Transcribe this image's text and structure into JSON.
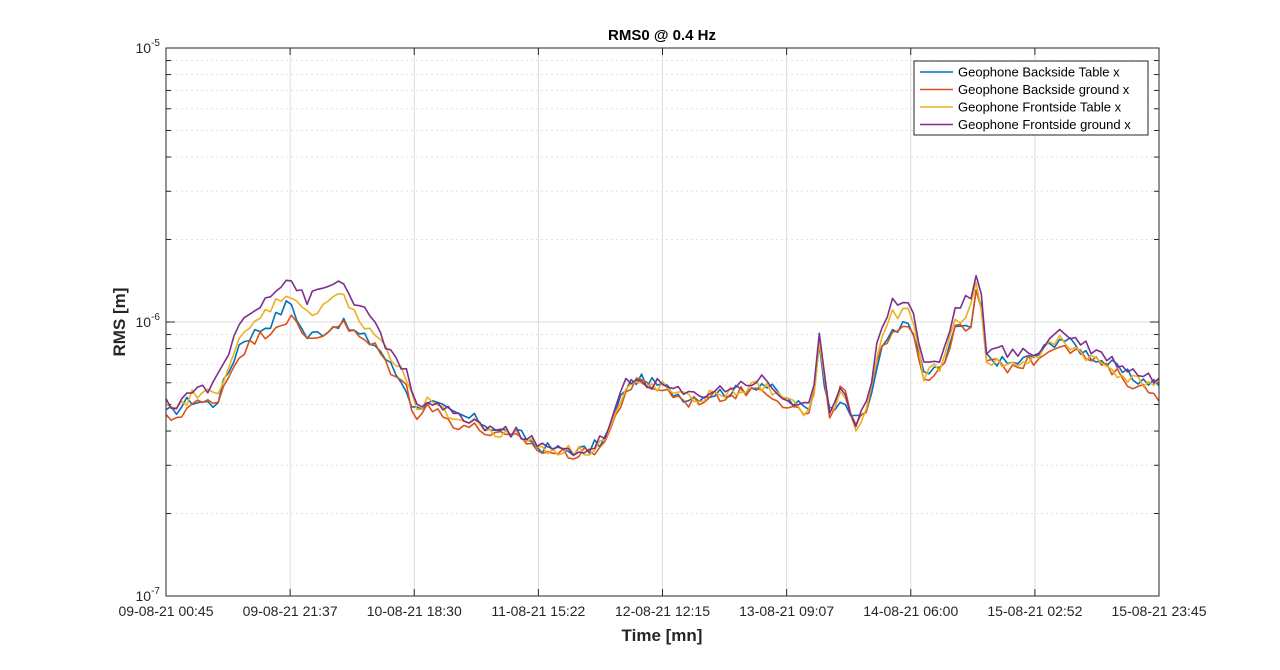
{
  "chart_data": {
    "type": "line",
    "title": "RMS0 @ 0.4 Hz",
    "xlabel": "Time [mn]",
    "ylabel": "RMS [m]",
    "yscale": "log",
    "ylim": [
      1e-07,
      1e-05
    ],
    "y_ticks": [
      {
        "value": 1e-07,
        "base": "10",
        "exp": "-7"
      },
      {
        "value": 1e-06,
        "base": "10",
        "exp": "-6"
      },
      {
        "value": 1e-05,
        "base": "10",
        "exp": "-5"
      }
    ],
    "x_tick_labels": [
      "09-08-21 00:45",
      "09-08-21 21:37",
      "10-08-21 18:30",
      "11-08-21 15:22",
      "12-08-21 12:15",
      "13-08-21 09:07",
      "14-08-21 06:00",
      "15-08-21 02:52",
      "15-08-21 23:45"
    ],
    "xlim": [
      0,
      8
    ],
    "grid": true,
    "minor_grid": true,
    "legend_position": "top-right",
    "x_unit_note": "x values are in tick intervals of 20h52m starting at 09-08-21 00:45",
    "series": [
      {
        "name": "Geophone Backside Table x",
        "color": "#0072BD",
        "anchors": [
          [
            0,
            4.6e-07
          ],
          [
            0.08,
            4.8e-07
          ],
          [
            0.2,
            5.2e-07
          ],
          [
            0.4,
            5e-07
          ],
          [
            0.6,
            8.5e-07
          ],
          [
            0.85,
            1e-06
          ],
          [
            1.0,
            1.2e-06
          ],
          [
            1.12,
            8.8e-07
          ],
          [
            1.25,
            9.2e-07
          ],
          [
            1.4,
            1e-06
          ],
          [
            1.55,
            9e-07
          ],
          [
            1.7,
            8.2e-07
          ],
          [
            1.85,
            6.5e-07
          ],
          [
            1.95,
            5.6e-07
          ],
          [
            2.0,
            4.7e-07
          ],
          [
            2.1,
            5.2e-07
          ],
          [
            2.3,
            4.6e-07
          ],
          [
            2.5,
            4.4e-07
          ],
          [
            2.7,
            4e-07
          ],
          [
            2.9,
            3.8e-07
          ],
          [
            3.0,
            3.5e-07
          ],
          [
            3.2,
            3.4e-07
          ],
          [
            3.4,
            3.4e-07
          ],
          [
            3.55,
            3.8e-07
          ],
          [
            3.7,
            5.8e-07
          ],
          [
            3.8,
            6.2e-07
          ],
          [
            4.0,
            5.8e-07
          ],
          [
            4.2,
            5.3e-07
          ],
          [
            4.4,
            5.5e-07
          ],
          [
            4.6,
            5.6e-07
          ],
          [
            4.8,
            6e-07
          ],
          [
            5.0,
            5.2e-07
          ],
          [
            5.2,
            4.7e-07
          ],
          [
            5.27,
            9e-07
          ],
          [
            5.33,
            4.6e-07
          ],
          [
            5.45,
            5.5e-07
          ],
          [
            5.55,
            4.3e-07
          ],
          [
            5.65,
            4.8e-07
          ],
          [
            5.75,
            7.5e-07
          ],
          [
            5.85,
            9.5e-07
          ],
          [
            6.0,
            9.8e-07
          ],
          [
            6.1,
            6.5e-07
          ],
          [
            6.25,
            6.6e-07
          ],
          [
            6.35,
            9.5e-07
          ],
          [
            6.48,
            9.3e-07
          ],
          [
            6.55,
            1.45e-06
          ],
          [
            6.6,
            7.5e-07
          ],
          [
            6.8,
            7e-07
          ],
          [
            7.0,
            7.5e-07
          ],
          [
            7.2,
            8.8e-07
          ],
          [
            7.4,
            7.8e-07
          ],
          [
            7.6,
            7e-07
          ],
          [
            7.8,
            6.2e-07
          ],
          [
            8.0,
            6e-07
          ]
        ]
      },
      {
        "name": "Geophone Backside ground x",
        "color": "#D95319",
        "anchors": [
          [
            0,
            4.4e-07
          ],
          [
            0.08,
            4.5e-07
          ],
          [
            0.2,
            5e-07
          ],
          [
            0.4,
            5.1e-07
          ],
          [
            0.6,
            7.8e-07
          ],
          [
            0.85,
            9.5e-07
          ],
          [
            1.0,
            1.05e-06
          ],
          [
            1.12,
            8.6e-07
          ],
          [
            1.25,
            9e-07
          ],
          [
            1.4,
            1e-06
          ],
          [
            1.55,
            8.8e-07
          ],
          [
            1.7,
            8e-07
          ],
          [
            1.85,
            6.3e-07
          ],
          [
            1.95,
            5.7e-07
          ],
          [
            2.0,
            4.5e-07
          ],
          [
            2.1,
            5e-07
          ],
          [
            2.3,
            4.3e-07
          ],
          [
            2.5,
            4.1e-07
          ],
          [
            2.7,
            3.8e-07
          ],
          [
            2.9,
            3.7e-07
          ],
          [
            3.0,
            3.4e-07
          ],
          [
            3.2,
            3.3e-07
          ],
          [
            3.4,
            3.3e-07
          ],
          [
            3.55,
            3.7e-07
          ],
          [
            3.7,
            5.6e-07
          ],
          [
            3.8,
            6e-07
          ],
          [
            4.0,
            5.7e-07
          ],
          [
            4.2,
            5.1e-07
          ],
          [
            4.4,
            5.3e-07
          ],
          [
            4.6,
            5.5e-07
          ],
          [
            4.8,
            5.8e-07
          ],
          [
            5.0,
            5e-07
          ],
          [
            5.2,
            4.5e-07
          ],
          [
            5.27,
            8.8e-07
          ],
          [
            5.33,
            4.4e-07
          ],
          [
            5.45,
            5.9e-07
          ],
          [
            5.55,
            4.1e-07
          ],
          [
            5.65,
            4.7e-07
          ],
          [
            5.75,
            7.8e-07
          ],
          [
            5.85,
            9.5e-07
          ],
          [
            6.0,
            1e-06
          ],
          [
            6.1,
            6.3e-07
          ],
          [
            6.25,
            6.5e-07
          ],
          [
            6.35,
            9.6e-07
          ],
          [
            6.48,
            9.1e-07
          ],
          [
            6.55,
            1.48e-06
          ],
          [
            6.6,
            7.2e-07
          ],
          [
            6.8,
            6.8e-07
          ],
          [
            7.0,
            7.3e-07
          ],
          [
            7.2,
            8.5e-07
          ],
          [
            7.4,
            7.5e-07
          ],
          [
            7.6,
            6.7e-07
          ],
          [
            7.8,
            5.9e-07
          ],
          [
            8.0,
            5.4e-07
          ]
        ]
      },
      {
        "name": "Geophone Frontside Table x",
        "color": "#EDB120",
        "anchors": [
          [
            0,
            4.8e-07
          ],
          [
            0.08,
            4.7e-07
          ],
          [
            0.2,
            5.4e-07
          ],
          [
            0.4,
            5.5e-07
          ],
          [
            0.6,
            8.6e-07
          ],
          [
            0.85,
            1.15e-06
          ],
          [
            1.0,
            1.3e-06
          ],
          [
            1.12,
            1.05e-06
          ],
          [
            1.25,
            1.15e-06
          ],
          [
            1.4,
            1.3e-06
          ],
          [
            1.55,
            1e-06
          ],
          [
            1.7,
            9e-07
          ],
          [
            1.85,
            6.8e-07
          ],
          [
            1.95,
            6.2e-07
          ],
          [
            2.0,
            4.7e-07
          ],
          [
            2.1,
            5.1e-07
          ],
          [
            2.3,
            4.5e-07
          ],
          [
            2.5,
            4.3e-07
          ],
          [
            2.7,
            3.9e-07
          ],
          [
            2.9,
            3.8e-07
          ],
          [
            3.0,
            3.5e-07
          ],
          [
            3.2,
            3.4e-07
          ],
          [
            3.4,
            3.4e-07
          ],
          [
            3.55,
            3.8e-07
          ],
          [
            3.7,
            5.6e-07
          ],
          [
            3.8,
            5.9e-07
          ],
          [
            4.0,
            5.8e-07
          ],
          [
            4.2,
            5.2e-07
          ],
          [
            4.4,
            5.4e-07
          ],
          [
            4.6,
            5.6e-07
          ],
          [
            4.8,
            5.9e-07
          ],
          [
            5.0,
            5.1e-07
          ],
          [
            5.2,
            4.6e-07
          ],
          [
            5.27,
            9.1e-07
          ],
          [
            5.33,
            4.5e-07
          ],
          [
            5.45,
            5.7e-07
          ],
          [
            5.55,
            4e-07
          ],
          [
            5.65,
            4.8e-07
          ],
          [
            5.75,
            8.6e-07
          ],
          [
            5.85,
            1.05e-06
          ],
          [
            6.0,
            1.1e-06
          ],
          [
            6.1,
            6.4e-07
          ],
          [
            6.25,
            6.9e-07
          ],
          [
            6.35,
            1e-06
          ],
          [
            6.48,
            1.1e-06
          ],
          [
            6.55,
            1.5e-06
          ],
          [
            6.6,
            7.3e-07
          ],
          [
            6.8,
            6.9e-07
          ],
          [
            7.0,
            7.4e-07
          ],
          [
            7.2,
            8.7e-07
          ],
          [
            7.4,
            7.6e-07
          ],
          [
            7.6,
            6.8e-07
          ],
          [
            7.8,
            6.1e-07
          ],
          [
            8.0,
            6e-07
          ]
        ]
      },
      {
        "name": "Geophone Frontside ground x",
        "color": "#7E2F8E",
        "anchors": [
          [
            0,
            5e-07
          ],
          [
            0.08,
            5e-07
          ],
          [
            0.2,
            5.6e-07
          ],
          [
            0.4,
            5.9e-07
          ],
          [
            0.6,
            1e-06
          ],
          [
            0.85,
            1.3e-06
          ],
          [
            1.0,
            1.45e-06
          ],
          [
            1.12,
            1.2e-06
          ],
          [
            1.25,
            1.3e-06
          ],
          [
            1.4,
            1.42e-06
          ],
          [
            1.55,
            1.15e-06
          ],
          [
            1.7,
            9.5e-07
          ],
          [
            1.85,
            7.2e-07
          ],
          [
            1.95,
            6.5e-07
          ],
          [
            2.0,
            4.7e-07
          ],
          [
            2.1,
            5.2e-07
          ],
          [
            2.3,
            4.6e-07
          ],
          [
            2.5,
            4.3e-07
          ],
          [
            2.7,
            4e-07
          ],
          [
            2.9,
            3.9e-07
          ],
          [
            3.0,
            3.5e-07
          ],
          [
            3.2,
            3.4e-07
          ],
          [
            3.4,
            3.4e-07
          ],
          [
            3.55,
            3.9e-07
          ],
          [
            3.7,
            6e-07
          ],
          [
            3.8,
            6.1e-07
          ],
          [
            4.0,
            5.9e-07
          ],
          [
            4.2,
            5.4e-07
          ],
          [
            4.4,
            5.6e-07
          ],
          [
            4.6,
            5.9e-07
          ],
          [
            4.8,
            6.2e-07
          ],
          [
            5.0,
            5.2e-07
          ],
          [
            5.2,
            4.8e-07
          ],
          [
            5.27,
            9.3e-07
          ],
          [
            5.33,
            4.7e-07
          ],
          [
            5.45,
            6e-07
          ],
          [
            5.55,
            4.3e-07
          ],
          [
            5.65,
            5e-07
          ],
          [
            5.75,
            9.5e-07
          ],
          [
            5.85,
            1.18e-06
          ],
          [
            6.0,
            1.2e-06
          ],
          [
            6.1,
            7e-07
          ],
          [
            6.25,
            7.3e-07
          ],
          [
            6.35,
            1.1e-06
          ],
          [
            6.48,
            1.25e-06
          ],
          [
            6.55,
            1.55e-06
          ],
          [
            6.6,
            8e-07
          ],
          [
            6.8,
            7.7e-07
          ],
          [
            7.0,
            7.7e-07
          ],
          [
            7.2,
            9.4e-07
          ],
          [
            7.4,
            8.3e-07
          ],
          [
            7.6,
            7.4e-07
          ],
          [
            7.8,
            6.6e-07
          ],
          [
            8.0,
            6.2e-07
          ]
        ]
      }
    ]
  }
}
